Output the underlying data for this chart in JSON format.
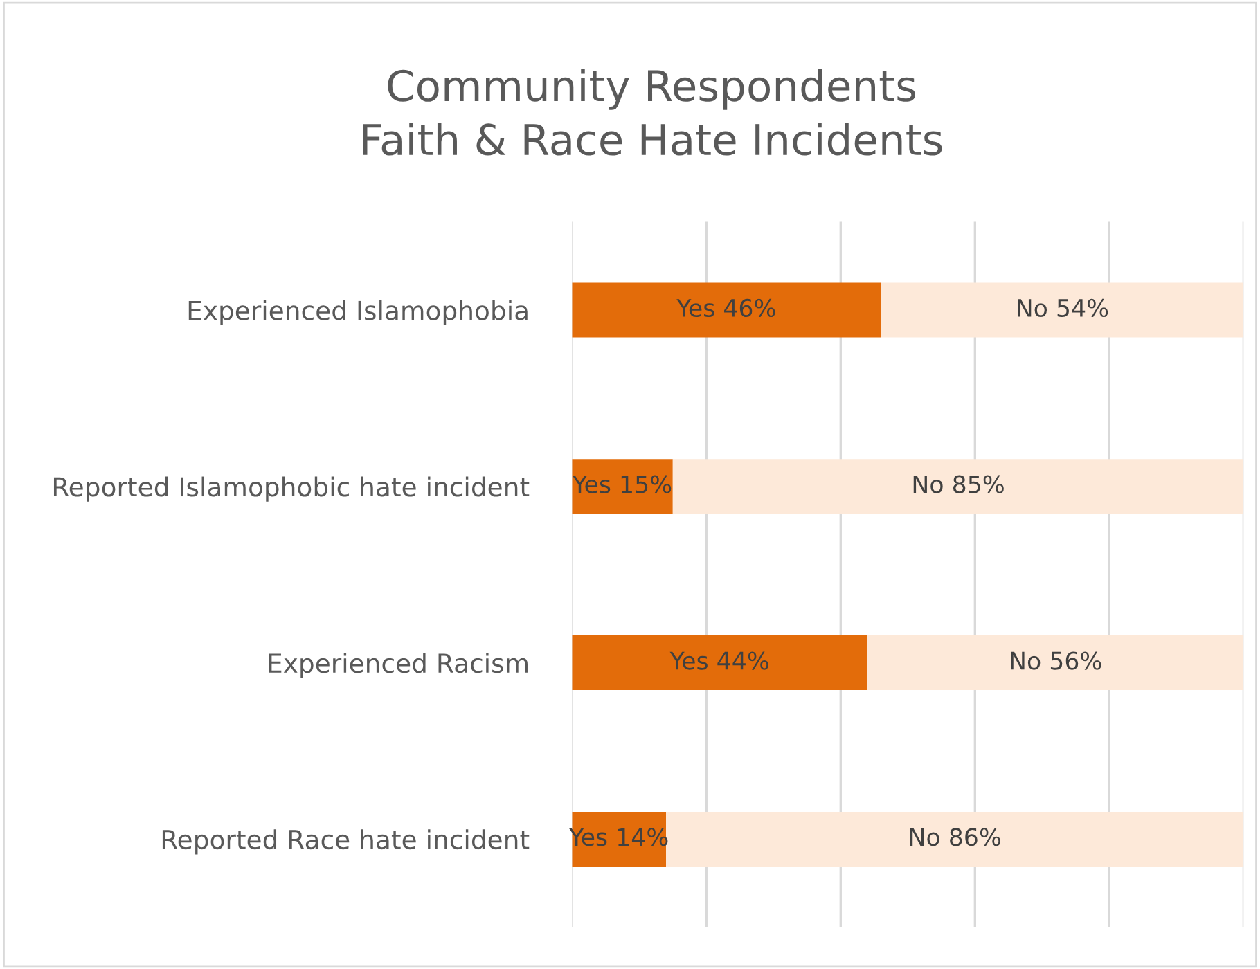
{
  "chart_data": {
    "type": "bar",
    "orientation": "horizontal",
    "stacked": true,
    "title": "Community Respondents\nFaith & Race Hate Incidents",
    "categories": [
      "Experienced Islamophobia",
      "Reported Islamophobic hate incident",
      "Experienced Racism",
      "Reported Race hate incident"
    ],
    "series": [
      {
        "color": "#e36c0a",
        "values": [
          46,
          15,
          44,
          14
        ],
        "value_labels": [
          "Yes 46%",
          "Yes 15%",
          "Yes 44%",
          "Yes 14%"
        ]
      },
      {
        "color": "#fde9d9",
        "values": [
          54,
          85,
          56,
          86
        ],
        "value_labels": [
          "No 54%",
          "No 85%",
          "No 56%",
          "No 86%"
        ]
      }
    ],
    "xlim": [
      0,
      100
    ],
    "xticks": [
      {
        "value": 0,
        "label": null
      },
      {
        "value": 20,
        "label": null
      },
      {
        "value": 40,
        "label": null
      },
      {
        "value": 60,
        "label": null
      },
      {
        "value": 80,
        "label": null
      },
      {
        "value": 100,
        "label": null
      }
    ],
    "grid": "x",
    "tick_labels": "y",
    "legend": false
  }
}
